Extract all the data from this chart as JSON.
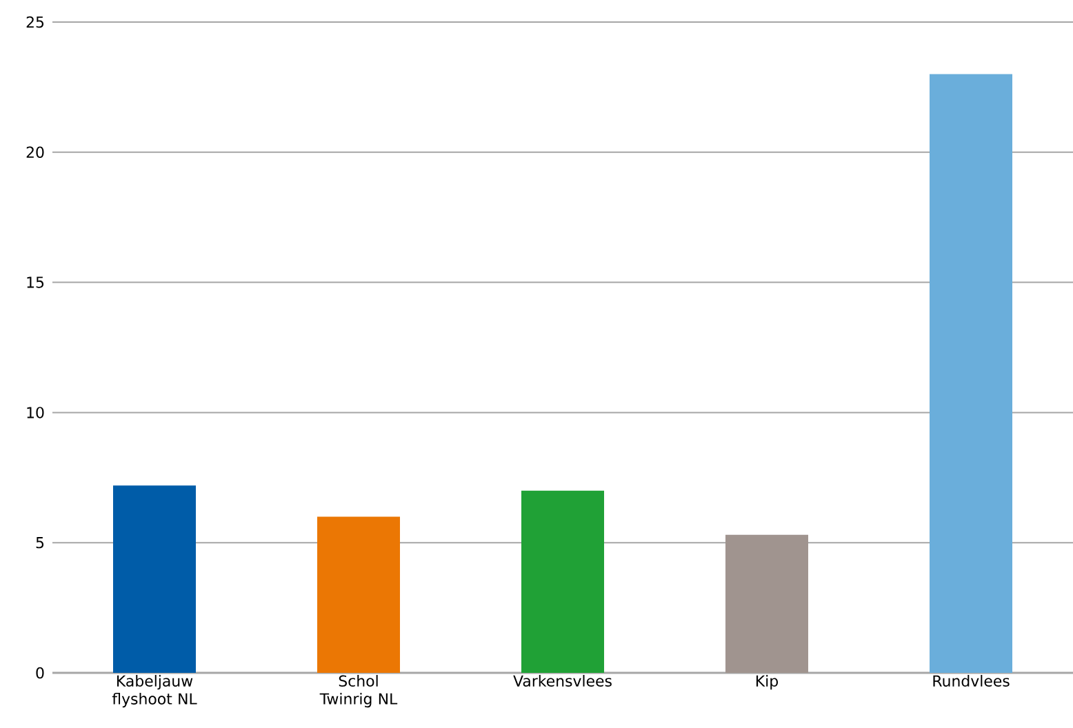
{
  "chart_data": {
    "type": "bar",
    "categories": [
      "Kabeljauw flyshoot NL",
      "Schol Twinrig NL",
      "Varkensvlees",
      "Kip",
      "Rundvlees"
    ],
    "values": [
      7.2,
      6.0,
      7.0,
      5.3,
      23.0
    ],
    "colors": [
      "#005ca8",
      "#eb7704",
      "#20a136",
      "#a0948f",
      "#6aaedb"
    ],
    "ylim": [
      0,
      25
    ],
    "yticks": [
      0,
      5,
      10,
      15,
      20,
      25
    ],
    "grid": "y"
  }
}
